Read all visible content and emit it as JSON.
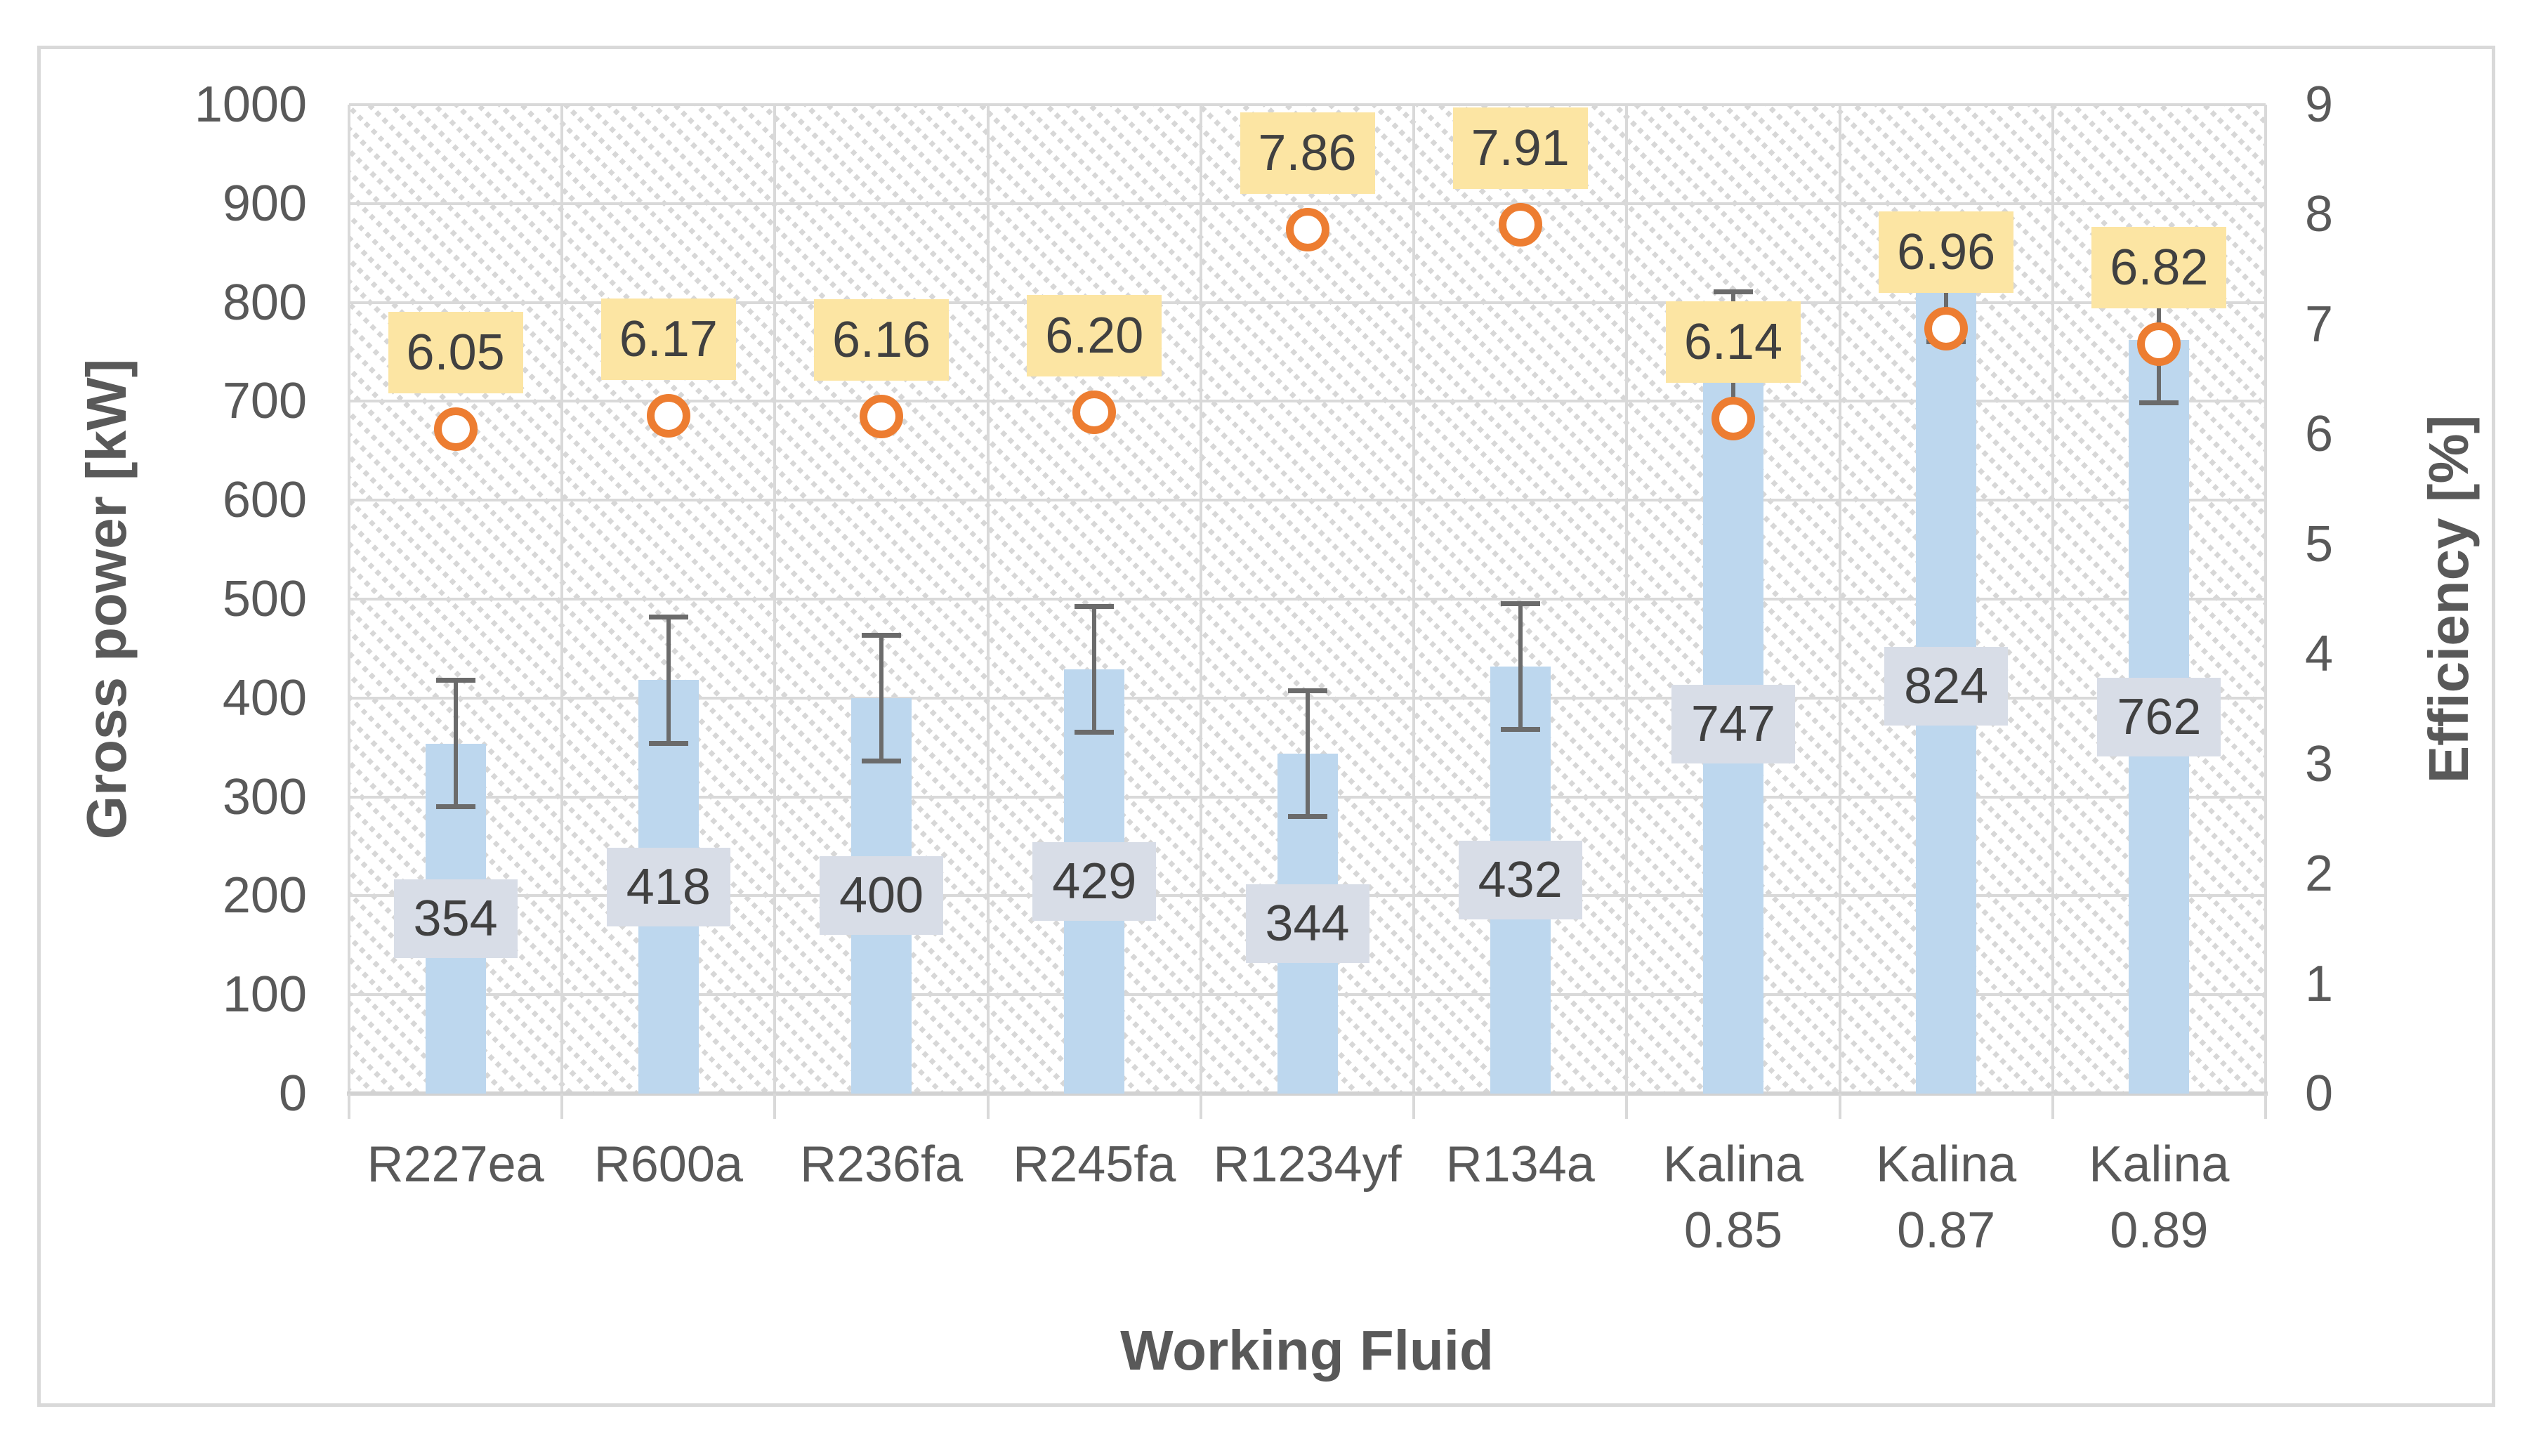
{
  "chart_data": {
    "type": "bar",
    "combo_types": [
      "bar",
      "scatter"
    ],
    "title": "",
    "categories": [
      "R227ea",
      "R600a",
      "R236fa",
      "R245fa",
      "R1234yf",
      "R134a",
      "Kalina 0.85",
      "Kalina 0.87",
      "Kalina 0.89"
    ],
    "category_label_lines": [
      [
        "R227ea"
      ],
      [
        "R600a"
      ],
      [
        "R236fa"
      ],
      [
        "R245fa"
      ],
      [
        "R1234yf"
      ],
      [
        "R134a"
      ],
      [
        "Kalina",
        "0.85"
      ],
      [
        "Kalina",
        "0.87"
      ],
      [
        "Kalina",
        "0.89"
      ]
    ],
    "series": [
      {
        "name": "Gross power",
        "type": "bar",
        "axis": "left",
        "values": [
          354,
          418,
          400,
          429,
          344,
          432,
          747,
          824,
          762
        ],
        "labels": [
          "354",
          "418",
          "400",
          "429",
          "344",
          "432",
          "747",
          "824",
          "762"
        ],
        "error_bar_plus_minus": 64
      },
      {
        "name": "Efficiency",
        "type": "scatter",
        "axis": "right",
        "values": [
          6.05,
          6.17,
          6.16,
          6.2,
          7.86,
          7.91,
          6.14,
          6.96,
          6.82
        ],
        "labels": [
          "6.05",
          "6.17",
          "6.16",
          "6.20",
          "7.86",
          "7.91",
          "6.14",
          "6.96",
          "6.82"
        ]
      }
    ],
    "left_axis": {
      "title": "Gross power [kW]",
      "min": 0,
      "max": 1000,
      "step": 100,
      "tick_labels": [
        "0",
        "100",
        "200",
        "300",
        "400",
        "500",
        "600",
        "700",
        "800",
        "900",
        "1000"
      ]
    },
    "right_axis": {
      "title": "Efficiency [%]",
      "min": 0,
      "max": 9,
      "step": 1,
      "tick_labels": [
        "0",
        "1",
        "2",
        "3",
        "4",
        "5",
        "6",
        "7",
        "8",
        "9"
      ]
    },
    "x_axis": {
      "title": "Working Fluid"
    },
    "legend": "none",
    "grid_on": true,
    "plot_background_pattern": "light diagonal hatch",
    "colors": {
      "bar_fill": "#BDD7EE",
      "bar_label_bg": "#D8DDE7",
      "marker_ring": "#ED7D31",
      "efficiency_label_bg": "#FCE5A3",
      "gridline": "#D9D9D9",
      "axis_text": "#595959",
      "label_text": "#404040",
      "error_bar": "#6B6B6B"
    }
  }
}
